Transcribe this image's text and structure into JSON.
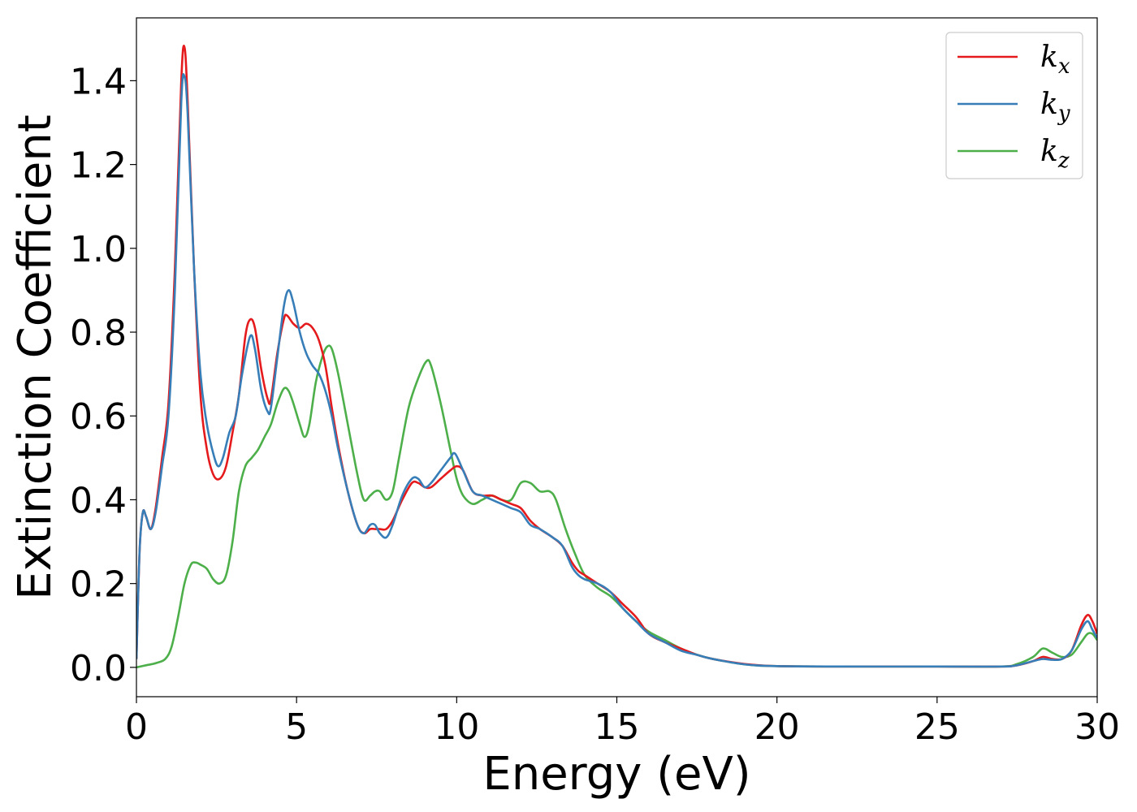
{
  "chart_data": {
    "type": "line",
    "xlabel": "Energy (eV)",
    "ylabel": "Extinction Coefficient",
    "xlim": [
      0,
      30
    ],
    "ylim": [
      -0.07,
      1.55
    ],
    "xticks": [
      0,
      5,
      10,
      15,
      20,
      25,
      30
    ],
    "xtick_labels": [
      "0",
      "5",
      "10",
      "15",
      "20",
      "25",
      "30"
    ],
    "yticks": [
      0.0,
      0.2,
      0.4,
      0.6,
      0.8,
      1.0,
      1.2,
      1.4
    ],
    "ytick_labels": [
      "0.0",
      "0.2",
      "0.4",
      "0.6",
      "0.8",
      "1.0",
      "1.2",
      "1.4"
    ],
    "grid": false,
    "legend_position": "top-right",
    "series": [
      {
        "name": "k_x",
        "label_main": "k",
        "label_sub": "x",
        "color": "#e41a1c",
        "x": [
          0,
          0.1,
          0.2,
          0.3,
          0.45,
          0.6,
          0.8,
          1.0,
          1.2,
          1.4,
          1.5,
          1.6,
          1.8,
          2.0,
          2.2,
          2.4,
          2.6,
          2.8,
          3.0,
          3.2,
          3.4,
          3.55,
          3.7,
          3.9,
          4.1,
          4.2,
          4.4,
          4.6,
          4.7,
          4.9,
          5.1,
          5.3,
          5.5,
          5.7,
          5.9,
          6.1,
          6.3,
          6.6,
          6.9,
          7.1,
          7.3,
          7.45,
          7.6,
          7.8,
          8.0,
          8.3,
          8.6,
          8.8,
          9.0,
          9.2,
          9.5,
          9.8,
          10.0,
          10.2,
          10.5,
          10.8,
          11.1,
          11.4,
          11.7,
          12.0,
          12.3,
          12.6,
          13.0,
          13.3,
          13.6,
          13.8,
          14.0,
          14.4,
          14.8,
          15.2,
          15.6,
          16.0,
          16.5,
          17.0,
          17.5,
          18.0,
          19.0,
          20.0,
          22.0,
          25.0,
          27.0,
          27.5,
          28.0,
          28.3,
          28.6,
          28.9,
          29.2,
          29.5,
          29.7,
          29.85,
          30.0
        ],
        "y": [
          0.02,
          0.28,
          0.37,
          0.36,
          0.33,
          0.38,
          0.5,
          0.63,
          0.95,
          1.4,
          1.48,
          1.35,
          0.95,
          0.65,
          0.52,
          0.46,
          0.45,
          0.48,
          0.56,
          0.65,
          0.79,
          0.83,
          0.81,
          0.71,
          0.64,
          0.64,
          0.75,
          0.83,
          0.84,
          0.82,
          0.81,
          0.82,
          0.81,
          0.78,
          0.72,
          0.62,
          0.53,
          0.42,
          0.34,
          0.32,
          0.33,
          0.33,
          0.33,
          0.33,
          0.35,
          0.4,
          0.44,
          0.44,
          0.43,
          0.43,
          0.45,
          0.47,
          0.48,
          0.47,
          0.42,
          0.41,
          0.41,
          0.4,
          0.39,
          0.38,
          0.35,
          0.33,
          0.31,
          0.29,
          0.25,
          0.23,
          0.22,
          0.2,
          0.18,
          0.15,
          0.12,
          0.08,
          0.06,
          0.045,
          0.03,
          0.02,
          0.008,
          0.003,
          0.002,
          0.002,
          0.002,
          0.005,
          0.015,
          0.025,
          0.02,
          0.02,
          0.04,
          0.1,
          0.125,
          0.11,
          0.08
        ]
      },
      {
        "name": "k_y",
        "label_main": "k",
        "label_sub": "y",
        "color": "#377eb8",
        "x": [
          0,
          0.1,
          0.2,
          0.3,
          0.45,
          0.6,
          0.8,
          1.0,
          1.2,
          1.4,
          1.5,
          1.6,
          1.8,
          2.0,
          2.2,
          2.4,
          2.55,
          2.7,
          2.9,
          3.1,
          3.3,
          3.55,
          3.7,
          3.9,
          4.1,
          4.2,
          4.4,
          4.6,
          4.75,
          4.9,
          5.1,
          5.3,
          5.5,
          5.7,
          5.9,
          6.1,
          6.3,
          6.6,
          6.9,
          7.1,
          7.3,
          7.45,
          7.6,
          7.8,
          8.0,
          8.3,
          8.6,
          8.8,
          9.0,
          9.2,
          9.5,
          9.8,
          9.95,
          10.2,
          10.5,
          10.8,
          11.1,
          11.4,
          11.7,
          12.0,
          12.3,
          12.6,
          13.0,
          13.3,
          13.6,
          13.8,
          14.0,
          14.4,
          14.8,
          15.2,
          15.6,
          16.0,
          16.5,
          17.0,
          17.5,
          18.0,
          19.0,
          20.0,
          22.0,
          25.0,
          27.0,
          27.5,
          28.0,
          28.3,
          28.6,
          28.9,
          29.2,
          29.5,
          29.7,
          29.85,
          30.0
        ],
        "y": [
          0.02,
          0.28,
          0.37,
          0.36,
          0.33,
          0.37,
          0.48,
          0.6,
          0.9,
          1.35,
          1.41,
          1.32,
          0.95,
          0.7,
          0.58,
          0.51,
          0.48,
          0.5,
          0.56,
          0.6,
          0.7,
          0.79,
          0.76,
          0.66,
          0.61,
          0.62,
          0.74,
          0.86,
          0.9,
          0.87,
          0.8,
          0.75,
          0.72,
          0.7,
          0.66,
          0.6,
          0.52,
          0.42,
          0.34,
          0.32,
          0.34,
          0.34,
          0.32,
          0.31,
          0.34,
          0.41,
          0.45,
          0.45,
          0.43,
          0.44,
          0.47,
          0.5,
          0.51,
          0.47,
          0.42,
          0.41,
          0.4,
          0.39,
          0.38,
          0.37,
          0.34,
          0.33,
          0.31,
          0.29,
          0.24,
          0.22,
          0.21,
          0.2,
          0.18,
          0.14,
          0.11,
          0.08,
          0.06,
          0.04,
          0.03,
          0.02,
          0.007,
          0.003,
          0.002,
          0.002,
          0.002,
          0.005,
          0.015,
          0.02,
          0.018,
          0.02,
          0.04,
          0.09,
          0.11,
          0.09,
          0.07
        ]
      },
      {
        "name": "k_z",
        "label_main": "k",
        "label_sub": "z",
        "color": "#4daf4a",
        "x": [
          0,
          0.3,
          0.6,
          0.9,
          1.1,
          1.3,
          1.5,
          1.7,
          1.85,
          2.0,
          2.2,
          2.4,
          2.6,
          2.8,
          3.0,
          3.2,
          3.4,
          3.6,
          3.8,
          4.0,
          4.2,
          4.4,
          4.6,
          4.75,
          4.9,
          5.1,
          5.25,
          5.4,
          5.6,
          5.8,
          5.95,
          6.1,
          6.3,
          6.6,
          6.9,
          7.1,
          7.3,
          7.45,
          7.6,
          7.8,
          8.0,
          8.2,
          8.5,
          8.8,
          9.05,
          9.2,
          9.5,
          9.8,
          10.0,
          10.2,
          10.5,
          10.8,
          11.1,
          11.4,
          11.7,
          12.0,
          12.3,
          12.6,
          12.9,
          13.1,
          13.4,
          13.7,
          14.0,
          14.4,
          14.8,
          15.2,
          15.6,
          16.0,
          16.5,
          17.0,
          17.5,
          18.0,
          19.0,
          20.0,
          22.0,
          25.0,
          27.0,
          27.5,
          28.0,
          28.3,
          28.6,
          28.9,
          29.2,
          29.5,
          29.7,
          29.85,
          30.0
        ],
        "y": [
          0.0,
          0.005,
          0.01,
          0.02,
          0.05,
          0.12,
          0.2,
          0.245,
          0.25,
          0.245,
          0.235,
          0.21,
          0.2,
          0.22,
          0.3,
          0.42,
          0.48,
          0.5,
          0.52,
          0.55,
          0.58,
          0.63,
          0.665,
          0.66,
          0.63,
          0.58,
          0.55,
          0.58,
          0.68,
          0.74,
          0.765,
          0.76,
          0.7,
          0.58,
          0.46,
          0.4,
          0.41,
          0.42,
          0.42,
          0.4,
          0.42,
          0.5,
          0.62,
          0.69,
          0.73,
          0.72,
          0.63,
          0.52,
          0.45,
          0.41,
          0.39,
          0.4,
          0.41,
          0.4,
          0.4,
          0.44,
          0.44,
          0.42,
          0.42,
          0.4,
          0.33,
          0.27,
          0.22,
          0.19,
          0.17,
          0.14,
          0.11,
          0.085,
          0.065,
          0.045,
          0.03,
          0.02,
          0.007,
          0.003,
          0.002,
          0.002,
          0.002,
          0.008,
          0.025,
          0.045,
          0.035,
          0.025,
          0.03,
          0.06,
          0.08,
          0.08,
          0.065
        ]
      }
    ]
  }
}
